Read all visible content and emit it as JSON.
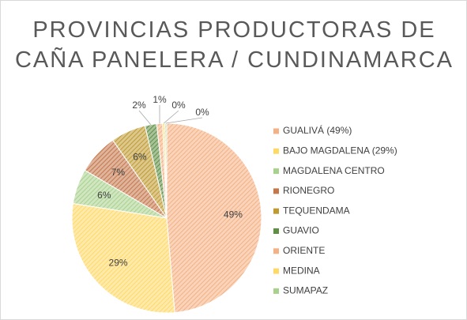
{
  "chart_data": {
    "type": "pie",
    "title": "PROVINCIAS PRODUCTORAS DE CAÑA PANELERA / CUNDINAMARCA",
    "categories": [
      "GUALIVÁ (49%)",
      "BAJO MAGDALENA (29%)",
      "MAGDALENA CENTRO",
      "RIONEGRO",
      "TEQUENDAMA",
      "GUAVIO",
      "ORIENTE",
      "MEDINA",
      "SUMAPAZ"
    ],
    "values": [
      49,
      29,
      6,
      7,
      6,
      2,
      1,
      0.4,
      0.3
    ],
    "value_labels": [
      "49%",
      "29%",
      "6%",
      "7%",
      "6%",
      "2%",
      "1%",
      "0%",
      "0%"
    ],
    "colors": [
      "#f4b183",
      "#ffd966",
      "#a9d18e",
      "#c5774a",
      "#bf9a30",
      "#5f8f45",
      "#f4b183",
      "#ffd966",
      "#a9d18e"
    ],
    "legend": "right"
  }
}
